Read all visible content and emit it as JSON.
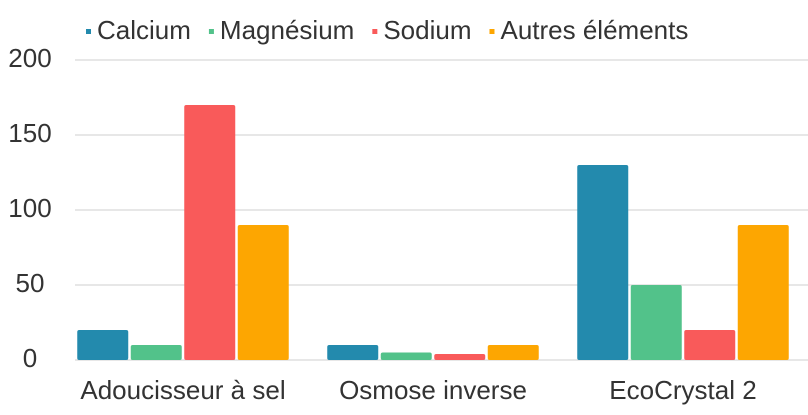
{
  "chart_data": {
    "type": "bar",
    "categories": [
      "Adoucisseur à sel",
      "Osmose inverse",
      "EcoCrystal 2"
    ],
    "series": [
      {
        "name": "Calcium",
        "color": "#238aad",
        "values": [
          20,
          10,
          130
        ]
      },
      {
        "name": "Magnésium",
        "color": "#52c28a",
        "values": [
          10,
          5,
          50
        ]
      },
      {
        "name": "Sodium",
        "color": "#f95a5a",
        "values": [
          170,
          4,
          20
        ]
      },
      {
        "name": "Autres éléments",
        "color": "#fda601",
        "values": [
          90,
          10,
          90
        ]
      }
    ],
    "ylim": [
      0,
      200
    ],
    "yticks": [
      0,
      50,
      100,
      150,
      200
    ],
    "grid": true,
    "legend": "top"
  }
}
